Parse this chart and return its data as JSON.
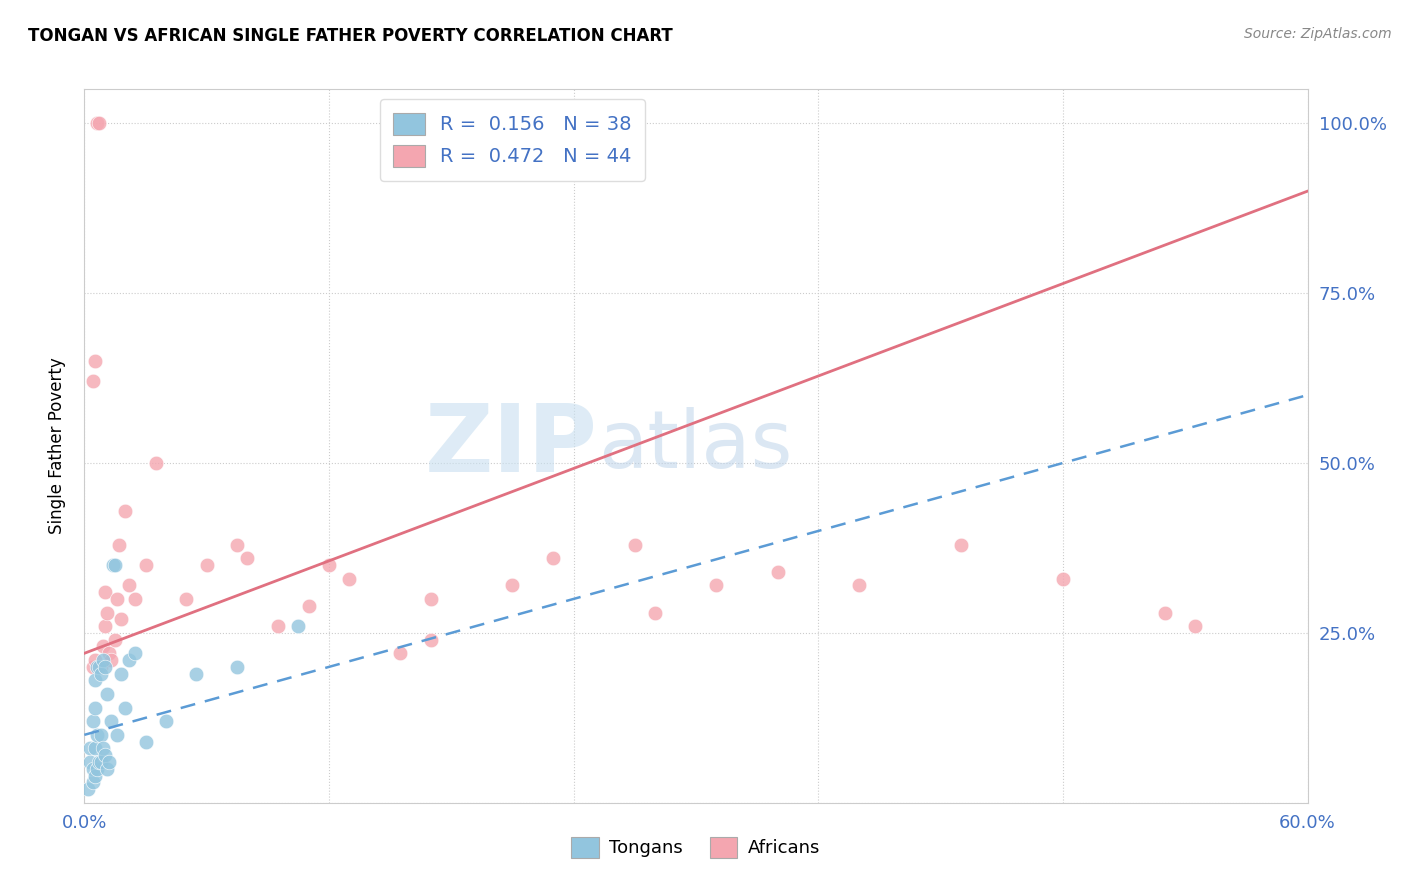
{
  "title": "TONGAN VS AFRICAN SINGLE FATHER POVERTY CORRELATION CHART",
  "source": "Source: ZipAtlas.com",
  "ylabel_label": "Single Father Poverty",
  "xlim": [
    0.0,
    0.6
  ],
  "ylim": [
    0.0,
    1.05
  ],
  "color_tongan": "#92c5de",
  "color_african": "#f4a6b0",
  "color_tongan_line": "#5b9bd5",
  "color_african_line": "#e07080",
  "watermark_zip": "ZIP",
  "watermark_atlas": "atlas",
  "background_color": "#ffffff",
  "tongan_x": [
    0.002,
    0.003,
    0.003,
    0.004,
    0.004,
    0.004,
    0.005,
    0.005,
    0.005,
    0.005,
    0.006,
    0.006,
    0.006,
    0.007,
    0.007,
    0.008,
    0.008,
    0.008,
    0.009,
    0.009,
    0.01,
    0.01,
    0.011,
    0.011,
    0.012,
    0.013,
    0.014,
    0.015,
    0.016,
    0.018,
    0.02,
    0.022,
    0.025,
    0.03,
    0.04,
    0.055,
    0.075,
    0.105
  ],
  "tongan_y": [
    0.02,
    0.06,
    0.08,
    0.03,
    0.05,
    0.12,
    0.04,
    0.08,
    0.14,
    0.18,
    0.05,
    0.1,
    0.2,
    0.06,
    0.2,
    0.06,
    0.1,
    0.19,
    0.08,
    0.21,
    0.07,
    0.2,
    0.05,
    0.16,
    0.06,
    0.12,
    0.35,
    0.35,
    0.1,
    0.19,
    0.14,
    0.21,
    0.22,
    0.09,
    0.12,
    0.19,
    0.2,
    0.26
  ],
  "african_x": [
    0.004,
    0.005,
    0.006,
    0.007,
    0.008,
    0.009,
    0.01,
    0.01,
    0.011,
    0.012,
    0.013,
    0.015,
    0.016,
    0.017,
    0.018,
    0.02,
    0.022,
    0.025,
    0.03,
    0.035,
    0.05,
    0.06,
    0.075,
    0.08,
    0.095,
    0.11,
    0.13,
    0.17,
    0.21,
    0.23,
    0.27,
    0.31,
    0.34,
    0.38,
    0.43,
    0.48,
    0.53,
    0.545,
    0.12,
    0.155,
    0.004,
    0.005,
    0.17,
    0.28
  ],
  "african_y": [
    0.2,
    0.21,
    1.0,
    1.0,
    0.2,
    0.23,
    0.26,
    0.31,
    0.28,
    0.22,
    0.21,
    0.24,
    0.3,
    0.38,
    0.27,
    0.43,
    0.32,
    0.3,
    0.35,
    0.5,
    0.3,
    0.35,
    0.38,
    0.36,
    0.26,
    0.29,
    0.33,
    0.3,
    0.32,
    0.36,
    0.38,
    0.32,
    0.34,
    0.32,
    0.38,
    0.33,
    0.28,
    0.26,
    0.35,
    0.22,
    0.62,
    0.65,
    0.24,
    0.28
  ],
  "african_line_x0": 0.0,
  "african_line_y0": 0.22,
  "african_line_x1": 0.6,
  "african_line_y1": 0.9,
  "tongan_line_x0": 0.0,
  "tongan_line_y0": 0.1,
  "tongan_line_x1": 0.6,
  "tongan_line_y1": 0.6
}
